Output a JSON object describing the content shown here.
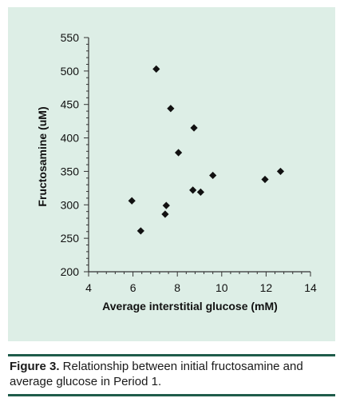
{
  "chart_data": {
    "type": "scatter",
    "xlabel": "Average interstitial glucose (mM)",
    "ylabel": "Fructosamine (uM)",
    "xlim": [
      4,
      14
    ],
    "ylim": [
      200,
      550
    ],
    "xticks": [
      "4",
      "6",
      "8",
      "10",
      "12",
      "14"
    ],
    "yticks": [
      "200",
      "250",
      "300",
      "350",
      "400",
      "450",
      "500",
      "550"
    ],
    "grid": false,
    "marker": "diamond",
    "marker_color": "#111111",
    "points": [
      {
        "x": 5.95,
        "y": 306
      },
      {
        "x": 6.35,
        "y": 261
      },
      {
        "x": 7.05,
        "y": 503
      },
      {
        "x": 7.45,
        "y": 286
      },
      {
        "x": 7.5,
        "y": 299
      },
      {
        "x": 7.7,
        "y": 444
      },
      {
        "x": 8.05,
        "y": 378
      },
      {
        "x": 8.7,
        "y": 322
      },
      {
        "x": 8.75,
        "y": 415
      },
      {
        "x": 9.05,
        "y": 319
      },
      {
        "x": 9.6,
        "y": 344
      },
      {
        "x": 11.95,
        "y": 338
      },
      {
        "x": 12.65,
        "y": 350
      }
    ]
  },
  "caption": {
    "label": "Figure 3.",
    "text": " Relationship between initial fructosamine and average glucose in Period 1."
  },
  "colors": {
    "panel_background": "#ddeee6",
    "rule": "#1f5c4a"
  }
}
